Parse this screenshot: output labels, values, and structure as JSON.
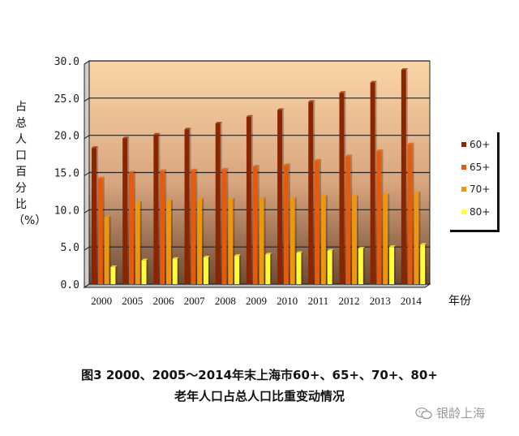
{
  "chart_data": {
    "type": "bar",
    "categories": [
      "2000",
      "2005",
      "2006",
      "2007",
      "2008",
      "2009",
      "2010",
      "2011",
      "2012",
      "2013",
      "2014"
    ],
    "series": [
      {
        "name": "60+",
        "color": "#8b2500",
        "values": [
          18.3,
          19.6,
          20.1,
          20.8,
          21.6,
          22.5,
          23.4,
          24.5,
          25.7,
          27.1,
          28.8
        ]
      },
      {
        "name": "65+",
        "color": "#e65a0c",
        "values": [
          14.2,
          15.0,
          15.2,
          15.3,
          15.4,
          15.8,
          16.0,
          16.6,
          17.2,
          17.9,
          18.8
        ]
      },
      {
        "name": "70+",
        "color": "#f0960a",
        "values": [
          9.0,
          11.0,
          11.2,
          11.4,
          11.4,
          11.5,
          11.5,
          11.8,
          11.8,
          12.0,
          12.3
        ]
      },
      {
        "name": "80+",
        "color": "#ffff33",
        "values": [
          2.3,
          3.2,
          3.4,
          3.6,
          3.8,
          4.0,
          4.2,
          4.5,
          4.8,
          5.0,
          5.3
        ]
      }
    ],
    "ylim": [
      0,
      30
    ],
    "yticks": [
      "0.0",
      "5.0",
      "10.0",
      "15.0",
      "20.0",
      "25.0",
      "30.0"
    ],
    "ylabel": "占总人口百分比（%）",
    "xlabel": "年份",
    "grid": true,
    "legend_position": "right"
  },
  "caption": {
    "line1": "图3 2000、2005～2014年末上海市60+、65+、70+、80+",
    "line2": "老年人口占总人口比重变动情况"
  },
  "watermark": "银龄上海"
}
